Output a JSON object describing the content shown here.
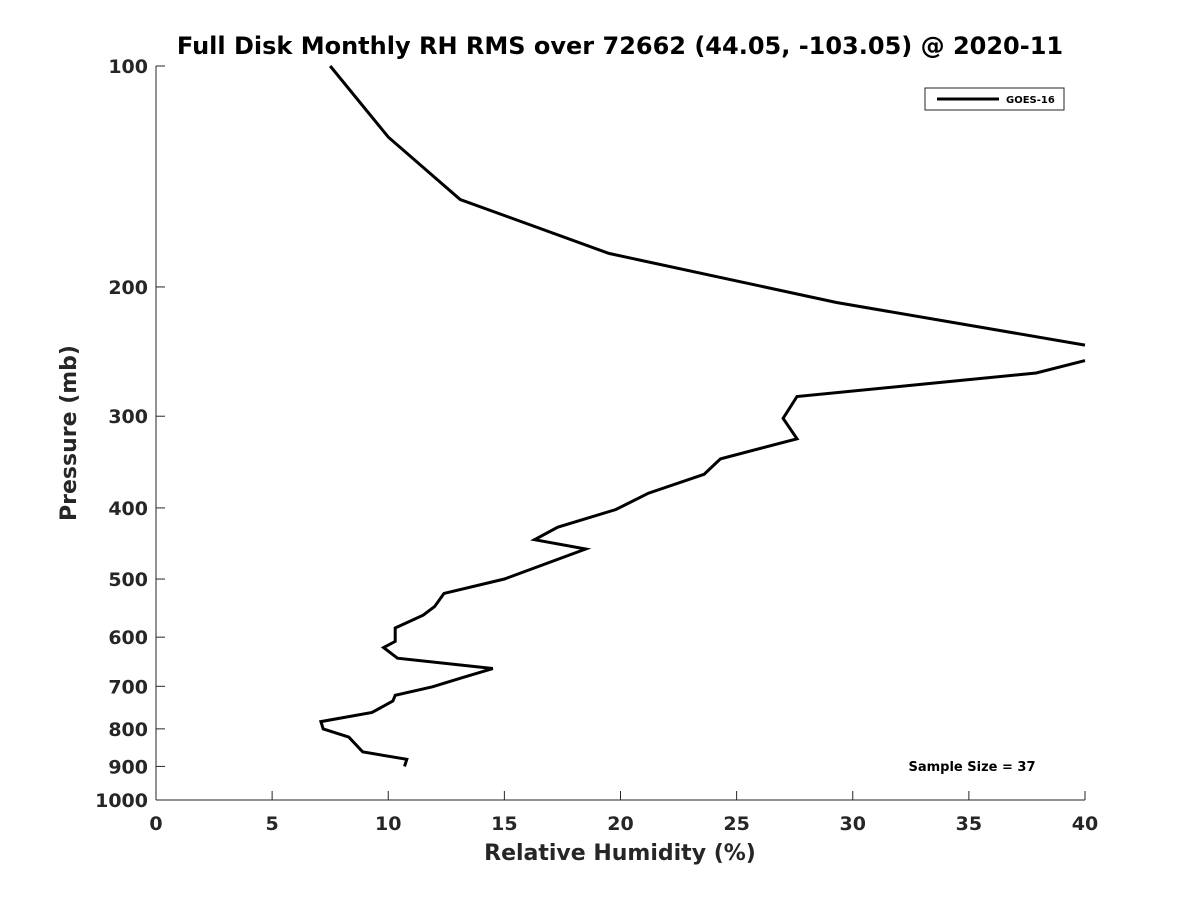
{
  "chart_data": {
    "type": "line",
    "title": "Full Disk Monthly RH RMS over 72662 (44.05, -103.05) @ 2020-11",
    "xlabel": "Relative Humidity (%)",
    "ylabel": "Pressure (mb)",
    "xlim": [
      0,
      40
    ],
    "ylim": [
      100,
      1000
    ],
    "y_scale": "log",
    "y_reversed": true,
    "grid": false,
    "legend_position": "top-right",
    "x_ticks": [
      "0",
      "5",
      "10",
      "15",
      "20",
      "25",
      "30",
      "35",
      "40"
    ],
    "y_ticks": [
      "100",
      "200",
      "300",
      "400",
      "500",
      "600",
      "700",
      "800",
      "900",
      "1000"
    ],
    "annotation": "Sample Size = 37",
    "series": [
      {
        "name": "GOES-16",
        "color": "#000000",
        "segments": [
          [
            [
              7.5,
              100
            ],
            [
              10.0,
              125
            ],
            [
              13.1,
              152
            ],
            [
              19.5,
              180
            ],
            [
              29.3,
              210
            ],
            [
              40.0,
              240
            ]
          ],
          [
            [
              40.0,
              252
            ],
            [
              37.9,
              262
            ],
            [
              27.6,
              282
            ],
            [
              27.0,
              302
            ],
            [
              27.6,
              322
            ],
            [
              24.3,
              343
            ],
            [
              23.6,
              360
            ],
            [
              21.2,
              382
            ],
            [
              19.8,
              402
            ],
            [
              17.3,
              425
            ],
            [
              16.3,
              442
            ],
            [
              18.5,
              455
            ],
            [
              15.0,
              500
            ],
            [
              12.4,
              523
            ],
            [
              12.0,
              545
            ],
            [
              11.5,
              560
            ],
            [
              10.3,
              583
            ],
            [
              10.3,
              608
            ],
            [
              9.8,
              620
            ],
            [
              10.4,
              641
            ],
            [
              14.5,
              662
            ],
            [
              13.2,
              681
            ],
            [
              11.9,
              701
            ],
            [
              10.3,
              720
            ],
            [
              10.2,
              733
            ],
            [
              9.3,
              760
            ],
            [
              7.1,
              782
            ],
            [
              7.2,
              800
            ],
            [
              8.3,
              821
            ],
            [
              8.9,
              860
            ],
            [
              10.8,
              880
            ],
            [
              10.7,
              900
            ]
          ]
        ]
      }
    ]
  }
}
